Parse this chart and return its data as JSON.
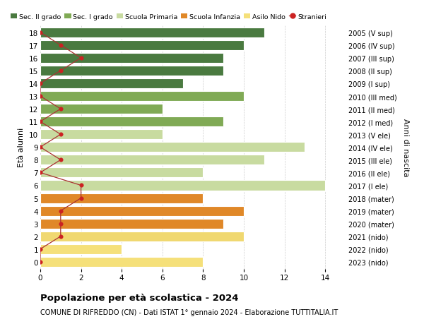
{
  "ages": [
    0,
    1,
    2,
    3,
    4,
    5,
    6,
    7,
    8,
    9,
    10,
    11,
    12,
    13,
    14,
    15,
    16,
    17,
    18
  ],
  "bar_values": [
    8,
    4,
    10,
    9,
    10,
    8,
    14,
    8,
    11,
    13,
    6,
    9,
    6,
    10,
    7,
    9,
    9,
    10,
    11
  ],
  "stranieri": [
    0,
    0,
    1,
    1,
    1,
    2,
    2,
    0,
    1,
    0,
    1,
    0,
    1,
    0,
    0,
    1,
    2,
    1,
    0
  ],
  "bar_colors": [
    "#f5e07a",
    "#f5e07a",
    "#f0d870",
    "#e08828",
    "#e08828",
    "#e08828",
    "#c8dba0",
    "#c8dba0",
    "#c8dba0",
    "#c8dba0",
    "#c8dba0",
    "#80aa55",
    "#80aa55",
    "#80aa55",
    "#4a7a40",
    "#4a7a40",
    "#4a7a40",
    "#4a7a40",
    "#4a7a40"
  ],
  "right_labels": [
    "2023 (nido)",
    "2022 (nido)",
    "2021 (nido)",
    "2020 (mater)",
    "2019 (mater)",
    "2018 (mater)",
    "2017 (I ele)",
    "2016 (II ele)",
    "2015 (III ele)",
    "2014 (IV ele)",
    "2013 (V ele)",
    "2012 (I med)",
    "2011 (II med)",
    "2010 (III med)",
    "2009 (I sup)",
    "2008 (II sup)",
    "2007 (III sup)",
    "2006 (IV sup)",
    "2005 (V sup)"
  ],
  "legend_labels": [
    "Sec. II grado",
    "Sec. I grado",
    "Scuola Primaria",
    "Scuola Infanzia",
    "Asilo Nido",
    "Stranieri"
  ],
  "legend_colors": [
    "#4a7a40",
    "#80aa55",
    "#c8dba0",
    "#e08828",
    "#f5e07a",
    "#cc2222"
  ],
  "stranieri_line_color": "#aa3333",
  "title": "Popolazione per età scolastica - 2024",
  "subtitle": "COMUNE DI RIFREDDO (CN) - Dati ISTAT 1° gennaio 2024 - Elaborazione TUTTITALIA.IT",
  "ylabel_left": "Età alunni",
  "ylabel_right": "Anni di nascita",
  "xlim": [
    0,
    15
  ],
  "xticks": [
    0,
    2,
    4,
    6,
    8,
    10,
    12,
    14
  ],
  "ylim_min": -0.55,
  "ylim_max": 18.55,
  "bar_height": 0.78,
  "fig_width": 6.0,
  "fig_height": 4.6,
  "dpi": 100
}
